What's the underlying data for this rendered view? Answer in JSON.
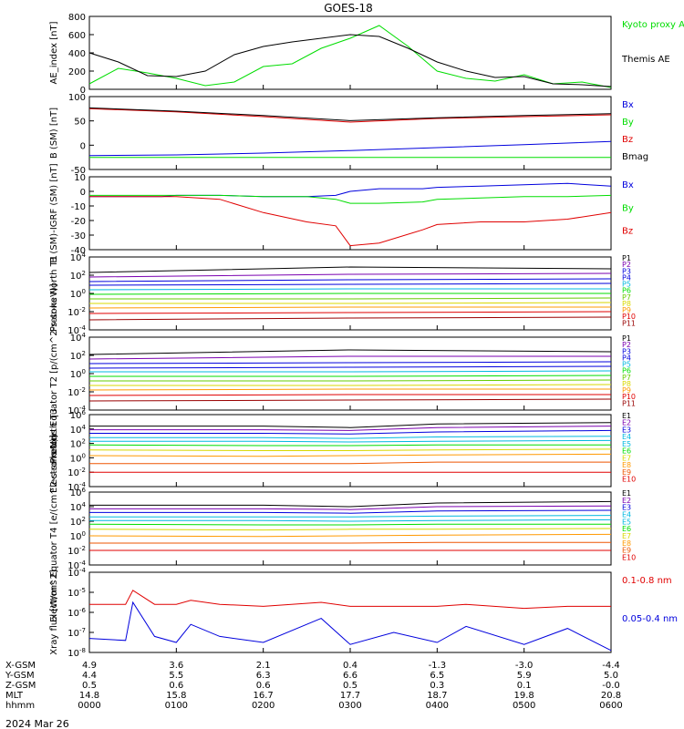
{
  "title": "GOES-18",
  "date": "2024 Mar 26",
  "colors": {
    "black": "#000000",
    "red": "#e00000",
    "green": "#00dd00",
    "blue": "#0000dd",
    "purple": "#7a00b0",
    "cyan": "#00b8e0",
    "lime": "#66cc00",
    "yellow": "#d8d800",
    "orange": "#ff9900",
    "darkorange": "#ee5500",
    "darkred": "#990000"
  },
  "orbit": {
    "row_labels": [
      "X-GSM",
      "Y-GSM",
      "Z-GSM",
      "MLT",
      "hhmm"
    ],
    "columns": [
      [
        "4.9",
        "4.4",
        "0.5",
        "14.8",
        "0000"
      ],
      [
        "3.6",
        "5.5",
        "0.6",
        "15.8",
        "0100"
      ],
      [
        "2.1",
        "6.3",
        "0.6",
        "16.7",
        "0200"
      ],
      [
        "0.4",
        "6.6",
        "0.5",
        "17.7",
        "0300"
      ],
      [
        "-1.3",
        "6.5",
        "0.3",
        "18.7",
        "0400"
      ],
      [
        "-3.0",
        "5.9",
        "0.1",
        "19.8",
        "0500"
      ],
      [
        "-4.4",
        "5.0",
        "-0.0",
        "20.8",
        "0600"
      ]
    ]
  },
  "chart_data": [
    {
      "type": "line",
      "ylabel": "AE_index [nT]",
      "ylim": [
        0,
        800
      ],
      "ticks": [
        "800",
        "600",
        "400",
        "200",
        "0"
      ],
      "x": [
        "0000",
        "0020",
        "0040",
        "0100",
        "0120",
        "0140",
        "0200",
        "0220",
        "0240",
        "0300",
        "0320",
        "0340",
        "0400",
        "0420",
        "0440",
        "0500",
        "0520",
        "0540",
        "0600"
      ],
      "series": [
        {
          "name": "Kyoto proxy AE",
          "color": "green",
          "values": [
            60,
            230,
            180,
            120,
            40,
            80,
            250,
            280,
            450,
            560,
            700,
            470,
            200,
            120,
            90,
            160,
            60,
            80,
            20
          ]
        },
        {
          "name": "Themis AE",
          "color": "black",
          "values": [
            400,
            300,
            150,
            140,
            200,
            380,
            470,
            520,
            560,
            600,
            580,
            450,
            300,
            200,
            130,
            140,
            60,
            50,
            30
          ]
        }
      ]
    },
    {
      "type": "line",
      "ylabel": "B (SM) [nT]",
      "ylim": [
        -60,
        140
      ],
      "ticks": [
        "100",
        "50",
        "0",
        "-50"
      ],
      "x": [
        "0000",
        "0100",
        "0200",
        "0300",
        "0400",
        "0500",
        "0600"
      ],
      "series": [
        {
          "name": "Bx",
          "color": "blue",
          "values": [
            -22,
            -20,
            -15,
            -8,
            0,
            8,
            17
          ]
        },
        {
          "name": "By",
          "color": "green",
          "values": [
            -27,
            -27,
            -27,
            -27,
            -27,
            -27,
            -27
          ]
        },
        {
          "name": "Bz",
          "color": "red",
          "values": [
            107,
            98,
            85,
            70,
            80,
            85,
            90
          ]
        },
        {
          "name": "Bmag",
          "color": "black",
          "values": [
            109,
            100,
            88,
            74,
            82,
            88,
            93
          ]
        }
      ]
    },
    {
      "type": "line",
      "ylabel": "B (SM)-IGRF (SM) [nT]",
      "ylim": [
        -43,
        12
      ],
      "ticks": [
        "10",
        "0",
        "-10",
        "-20",
        "-30",
        "-40"
      ],
      "x": [
        "0000",
        "0050",
        "0100",
        "0130",
        "0200",
        "0230",
        "0250",
        "0300",
        "0320",
        "0350",
        "0400",
        "0430",
        "0500",
        "0530",
        "0600"
      ],
      "series": [
        {
          "name": "Bx",
          "color": "blue",
          "values": [
            -3,
            -3,
            -2,
            -2,
            -3,
            -3,
            -2,
            1,
            3,
            3,
            4,
            5,
            6,
            7,
            5
          ]
        },
        {
          "name": "By",
          "color": "green",
          "values": [
            -2,
            -2,
            -2,
            -2,
            -3,
            -3,
            -5,
            -8,
            -8,
            -7,
            -5,
            -4,
            -3,
            -3,
            -2
          ]
        },
        {
          "name": "Bz",
          "color": "red",
          "values": [
            -3,
            -3,
            -3,
            -5,
            -15,
            -22,
            -25,
            -40,
            -38,
            -28,
            -24,
            -22,
            -22,
            -20,
            -15
          ]
        }
      ]
    },
    {
      "type": "line",
      "ylabel": "Protons North T1",
      "log": true,
      "ylim": [
        -4,
        4
      ],
      "ticks": [
        "10^4",
        "10^2",
        "10^0",
        "10^-2",
        "10^-4"
      ],
      "x": [
        "0000",
        "0300",
        "0600"
      ],
      "series": [
        {
          "name": "P1",
          "color": "black",
          "values": [
            2.3,
            2.9,
            2.7
          ]
        },
        {
          "name": "P2",
          "color": "purple",
          "values": [
            1.8,
            2.1,
            2.2
          ]
        },
        {
          "name": "P3",
          "color": "blue",
          "values": [
            1.3,
            1.5,
            1.6
          ]
        },
        {
          "name": "P4",
          "color": "blue",
          "values": [
            0.9,
            1.0,
            1.1
          ]
        },
        {
          "name": "P5",
          "color": "cyan",
          "values": [
            0.4,
            0.5,
            0.5
          ]
        },
        {
          "name": "P6",
          "color": "green",
          "values": [
            -0.1,
            0,
            0
          ]
        },
        {
          "name": "P7",
          "color": "lime",
          "values": [
            -0.6,
            -0.6,
            -0.5
          ]
        },
        {
          "name": "P8",
          "color": "yellow",
          "values": [
            -1.1,
            -1.1,
            -1.0
          ]
        },
        {
          "name": "P9",
          "color": "orange",
          "values": [
            -1.6,
            -1.5,
            -1.5
          ]
        },
        {
          "name": "P10",
          "color": "red",
          "values": [
            -2.2,
            -2.1,
            -2.0
          ]
        },
        {
          "name": "P11",
          "color": "darkred",
          "values": [
            -2.9,
            -2.7,
            -2.6
          ]
        }
      ]
    },
    {
      "type": "line",
      "ylabel": "Protons Equator T2 [p/(cm^2-s-sr-keV)]",
      "log": true,
      "ylim": [
        -4,
        4
      ],
      "ticks": [
        "10^4",
        "10^2",
        "10^0",
        "10^-2",
        "10^-4"
      ],
      "x": [
        "0000",
        "0300",
        "0600"
      ],
      "series": [
        {
          "name": "P1",
          "color": "black",
          "values": [
            2.1,
            2.6,
            2.4
          ]
        },
        {
          "name": "P2",
          "color": "purple",
          "values": [
            1.6,
            1.9,
            1.9
          ]
        },
        {
          "name": "P3",
          "color": "blue",
          "values": [
            1.1,
            1.2,
            1.3
          ]
        },
        {
          "name": "P4",
          "color": "blue",
          "values": [
            0.6,
            0.7,
            0.8
          ]
        },
        {
          "name": "P5",
          "color": "cyan",
          "values": [
            0.2,
            0.2,
            0.3
          ]
        },
        {
          "name": "P6",
          "color": "green",
          "values": [
            -0.3,
            -0.3,
            -0.2
          ]
        },
        {
          "name": "P7",
          "color": "lime",
          "values": [
            -0.8,
            -0.8,
            -0.7
          ]
        },
        {
          "name": "P8",
          "color": "yellow",
          "values": [
            -1.3,
            -1.3,
            -1.2
          ]
        },
        {
          "name": "P9",
          "color": "orange",
          "values": [
            -1.8,
            -1.7,
            -1.7
          ]
        },
        {
          "name": "P10",
          "color": "red",
          "values": [
            -2.4,
            -2.3,
            -2.3
          ]
        },
        {
          "name": "P11",
          "color": "darkred",
          "values": [
            -3.0,
            -2.9,
            -2.8
          ]
        }
      ]
    },
    {
      "type": "line",
      "ylabel": "Electrons North T3",
      "log": true,
      "ylim": [
        -4,
        6
      ],
      "ticks": [
        "10^6",
        "10^4",
        "10^2",
        "10^0",
        "10^-2",
        "10^-4"
      ],
      "x": [
        "0000",
        "0200",
        "0300",
        "0400",
        "0600"
      ],
      "series": [
        {
          "name": "E1",
          "color": "black",
          "values": [
            4.4,
            4.4,
            4.2,
            4.7,
            4.9
          ]
        },
        {
          "name": "E2",
          "color": "purple",
          "values": [
            3.9,
            3.9,
            3.8,
            4.2,
            4.4
          ]
        },
        {
          "name": "E3",
          "color": "blue",
          "values": [
            3.4,
            3.4,
            3.3,
            3.6,
            3.8
          ]
        },
        {
          "name": "E4",
          "color": "cyan",
          "values": [
            2.8,
            2.8,
            2.7,
            2.9,
            3.0
          ]
        },
        {
          "name": "E5",
          "color": "cyan",
          "values": [
            2.3,
            2.3,
            2.2,
            2.3,
            2.4
          ]
        },
        {
          "name": "E6",
          "color": "green",
          "values": [
            1.8,
            1.7,
            1.7,
            1.8,
            1.8
          ]
        },
        {
          "name": "E7",
          "color": "yellow",
          "values": [
            1.1,
            1.0,
            1.0,
            1.1,
            1.2
          ]
        },
        {
          "name": "E8",
          "color": "orange",
          "values": [
            0.3,
            0.2,
            0.3,
            0.4,
            0.5
          ]
        },
        {
          "name": "E9",
          "color": "darkorange",
          "values": [
            -0.8,
            -0.8,
            -0.8,
            -0.6,
            -0.6
          ]
        },
        {
          "name": "E10",
          "color": "red",
          "values": [
            -2.0,
            -2.0,
            -2.0,
            -2.0,
            -2.0
          ]
        }
      ]
    },
    {
      "type": "line",
      "ylabel": "Electrons Equator T4 [e/(cm^2-s-sr-keV)]",
      "log": true,
      "ylim": [
        -4,
        6
      ],
      "ticks": [
        "10^6",
        "10^4",
        "10^2",
        "10^0",
        "10^-2",
        "10^-4"
      ],
      "x": [
        "0000",
        "0200",
        "0300",
        "0400",
        "0600"
      ],
      "series": [
        {
          "name": "E1",
          "color": "black",
          "values": [
            4.2,
            4.2,
            4.0,
            4.5,
            4.7
          ]
        },
        {
          "name": "E2",
          "color": "purple",
          "values": [
            3.7,
            3.7,
            3.6,
            4.0,
            4.1
          ]
        },
        {
          "name": "E3",
          "color": "blue",
          "values": [
            3.2,
            3.2,
            3.1,
            3.4,
            3.5
          ]
        },
        {
          "name": "E4",
          "color": "cyan",
          "values": [
            2.6,
            2.6,
            2.6,
            2.7,
            2.8
          ]
        },
        {
          "name": "E5",
          "color": "cyan",
          "values": [
            2.1,
            2.1,
            2.0,
            2.1,
            2.2
          ]
        },
        {
          "name": "E6",
          "color": "green",
          "values": [
            1.6,
            1.5,
            1.5,
            1.6,
            1.6
          ]
        },
        {
          "name": "E7",
          "color": "yellow",
          "values": [
            0.9,
            0.8,
            0.9,
            0.9,
            1.0
          ]
        },
        {
          "name": "E8",
          "color": "orange",
          "values": [
            0.0,
            -0.1,
            0.0,
            0.1,
            0.2
          ]
        },
        {
          "name": "E9",
          "color": "darkorange",
          "values": [
            -1.0,
            -1.0,
            -1.0,
            -0.9,
            -0.9
          ]
        },
        {
          "name": "E10",
          "color": "red",
          "values": [
            -2.0,
            -2.0,
            -2.0,
            -2.0,
            -2.0
          ]
        }
      ]
    },
    {
      "type": "line",
      "ylabel": "Xray flux [W/m^2]",
      "log": true,
      "ylim": [
        -8,
        -4
      ],
      "ticks": [
        "10^-4",
        "10^-5",
        "10^-6",
        "10^-7",
        "10^-8"
      ],
      "x": [
        "0000",
        "0025",
        "0030",
        "0045",
        "0100",
        "0110",
        "0130",
        "0200",
        "0240",
        "0300",
        "0330",
        "0400",
        "0420",
        "0500",
        "0530",
        "0600"
      ],
      "series": [
        {
          "name": "0.1-0.8 nm",
          "color": "red",
          "values": [
            -5.6,
            -5.6,
            -4.9,
            -5.6,
            -5.6,
            -5.4,
            -5.6,
            -5.7,
            -5.5,
            -5.7,
            -5.7,
            -5.7,
            -5.6,
            -5.8,
            -5.7,
            -5.7
          ]
        },
        {
          "name": "0.05-0.4 nm",
          "color": "blue",
          "values": [
            -7.3,
            -7.4,
            -5.5,
            -7.2,
            -7.5,
            -6.6,
            -7.2,
            -7.5,
            -6.3,
            -7.6,
            -7.0,
            -7.5,
            -6.7,
            -7.6,
            -6.8,
            -7.9
          ]
        }
      ]
    }
  ]
}
